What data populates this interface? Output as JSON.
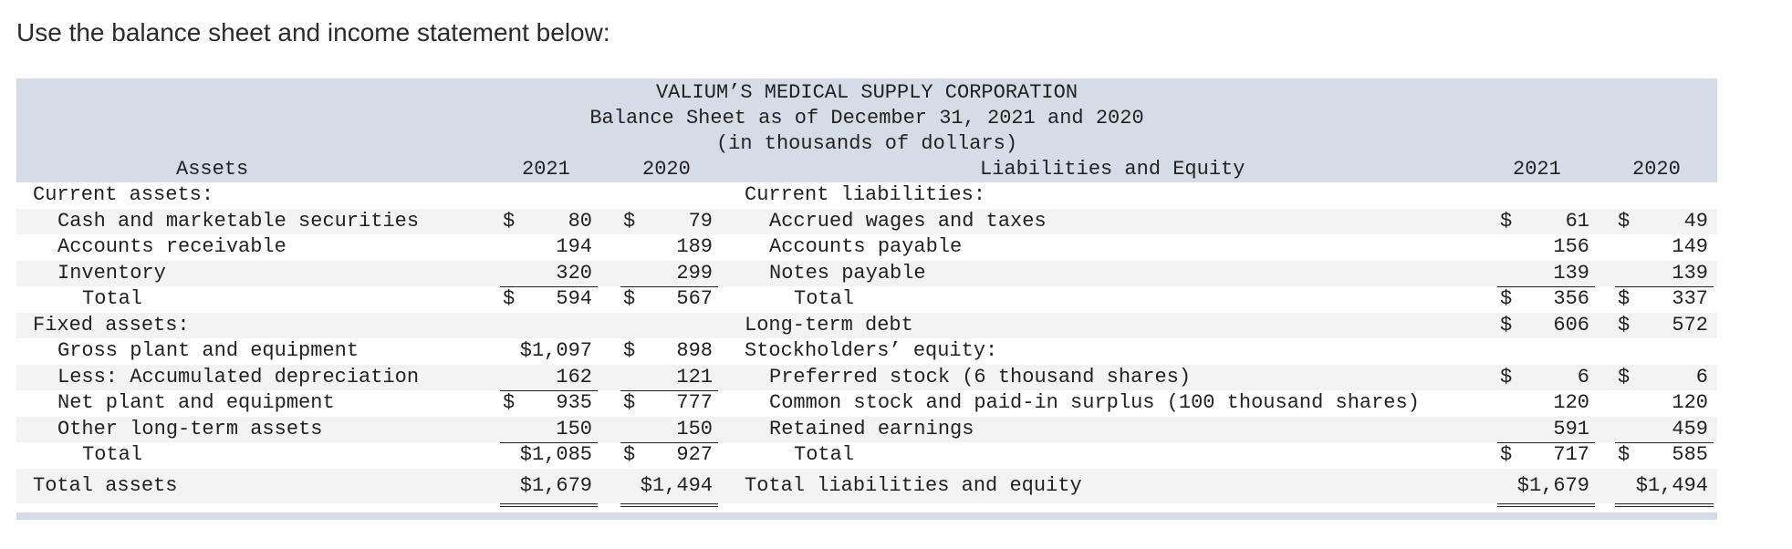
{
  "intro": "Use the balance sheet and income statement below:",
  "balance_sheet": {
    "title": [
      "VALIUM’S MEDICAL SUPPLY CORPORATION",
      "Balance Sheet as of December 31, 2021 and 2020",
      "(in thousands of dollars)"
    ],
    "headers": {
      "assets": "Assets",
      "y2021": "2021",
      "y2020": "2020",
      "liab": "Liabilities and Equity",
      "ly2021": "2021",
      "ly2020": "2020"
    },
    "rows": [
      {
        "a": "Current assets:",
        "ai": 0,
        "l": "Current liabilities:",
        "li": 0
      },
      {
        "a": "Cash and marketable securities",
        "ai": 1,
        "a1s": "$",
        "a1": "80",
        "a2s": "$",
        "a2": "79",
        "l": "Accrued wages and taxes",
        "li": 1,
        "l1s": "$",
        "l1": "61",
        "l2s": "$",
        "l2": "49"
      },
      {
        "a": "Accounts receivable",
        "ai": 1,
        "a1": "194",
        "a2": "189",
        "l": "Accounts payable",
        "li": 1,
        "l1": "156",
        "l2": "149"
      },
      {
        "a": "Inventory",
        "ai": 1,
        "a1": "320",
        "a2": "299",
        "au": "ul",
        "l": "Notes payable",
        "li": 1,
        "l1": "139",
        "l2": "139",
        "lu": "ul"
      },
      {
        "a": "Total",
        "ai": 2,
        "a1s": "$",
        "a1": "594",
        "a2s": "$",
        "a2": "567",
        "l": "Total",
        "li": 2,
        "l1s": "$",
        "l1": "356",
        "l2s": "$",
        "l2": "337"
      },
      {
        "a": "Fixed assets:",
        "ai": 0,
        "l": "Long-term debt",
        "li": 0,
        "l1s": "$",
        "l1": "606",
        "l2s": "$",
        "l2": "572"
      },
      {
        "a": "Gross plant and equipment",
        "ai": 1,
        "a1": "$1,097",
        "a2s": "$",
        "a2": "898",
        "l": "Stockholders’ equity:",
        "li": 0
      },
      {
        "a": "Less: Accumulated depreciation",
        "ai": 1,
        "a1": "162",
        "a2": "121",
        "au": "ul",
        "l": "Preferred stock (6 thousand shares)",
        "li": 1,
        "l1s": "$",
        "l1": "6",
        "l2s": "$",
        "l2": "6"
      },
      {
        "a": "Net plant and equipment",
        "ai": 1,
        "a1s": "$",
        "a1": "935",
        "a2s": "$",
        "a2": "777",
        "l": "Common stock and paid-in surplus (100 thousand shares)",
        "li": 1,
        "l1": "120",
        "l2": "120"
      },
      {
        "a": "Other long-term assets",
        "ai": 1,
        "a1": "150",
        "a2": "150",
        "au": "ul",
        "l": "Retained earnings",
        "li": 1,
        "l1": "591",
        "l2": "459",
        "lu": "ul"
      },
      {
        "a": "Total",
        "ai": 2,
        "a1": "$1,085",
        "a2s": "$",
        "a2": "927",
        "l": "Total",
        "li": 2,
        "l1s": "$",
        "l1": "717",
        "l2s": "$",
        "l2": "585"
      },
      {
        "a": "Total assets",
        "ai": 0,
        "a1": "$1,679",
        "a2": "$1,494",
        "au": "dul",
        "l": "Total liabilities and equity",
        "li": 0,
        "l1": "$1,679",
        "l2": "$1,494",
        "lu": "dul",
        "big": true
      }
    ]
  }
}
